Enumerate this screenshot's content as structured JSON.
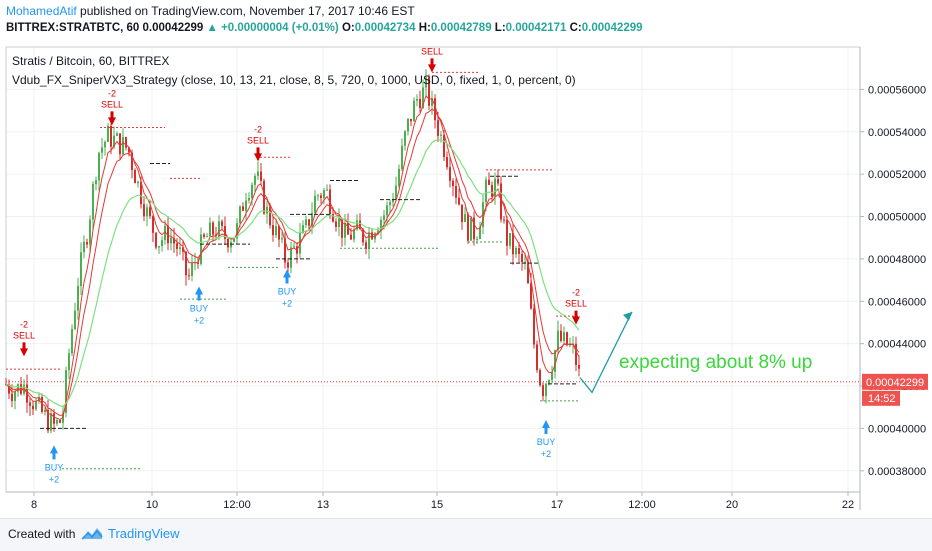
{
  "header": {
    "author": "MohamedAtif",
    "published": " published on TradingView.com, November 17, 2017 10:46 EST",
    "symbol": "BITTREX:STRATBTC, 60",
    "last": "0.00042299",
    "change": "▲ +0.00000004 (+0.01%)",
    "o_label": "O:",
    "o_val": "0.00042734",
    "h_label": "H:",
    "h_val": "0.00042789",
    "l_label": "L:",
    "l_val": "0.00042171",
    "c_label": "C:",
    "c_val": "0.00042299"
  },
  "legend": {
    "line1": "Stratis / Bitcoin, 60, BITTREX",
    "line2": "Vdub_FX_SniperVX3_Strategy (close, 10, 13, 21, close, 8, 5, 720, 0, 1000, USD, 0, fixed, 1, 0, percent, 0)"
  },
  "annotation": "expecting about 8% up",
  "footer": {
    "created": "Created with",
    "brand": "TradingView"
  },
  "colors": {
    "up": "#26a69a",
    "down": "#ef5350",
    "bull_candle": "#4caf50",
    "bear_candle": "#d32f2f",
    "fast_ma": "#e53935",
    "slow_ma": "#7fe07f",
    "buy": "#2196f3",
    "sell": "#d50000",
    "annotation": "#3ad63a",
    "arrow": "#1e9ea3"
  },
  "chart_data": {
    "type": "candlestick",
    "title": "Stratis / Bitcoin, 60, BITTREX",
    "ylim": [
      0.00037,
      0.00058
    ],
    "y_ticks": [
      "0.00038000",
      "0.00040000",
      "0.00042000",
      "0.00044000",
      "0.00046000",
      "0.00048000",
      "0.00050000",
      "0.00052000",
      "0.00054000",
      "0.00056000"
    ],
    "x_ticks": [
      "8",
      "10",
      "12:00",
      "13",
      "15",
      "17",
      "12:00",
      "20",
      "22"
    ],
    "last_price_label": "0.00042299",
    "countdown": "14:52",
    "price_path": [
      [
        0,
        0.000424
      ],
      [
        12,
        0.000418
      ],
      [
        24,
        0.00042
      ],
      [
        34,
        0.000412
      ],
      [
        44,
        0.000406
      ],
      [
        54,
        0.000401
      ],
      [
        62,
        0.000404
      ],
      [
        70,
        0.00044
      ],
      [
        78,
        0.00047
      ],
      [
        88,
        0.000495
      ],
      [
        98,
        0.00053
      ],
      [
        108,
        0.000538
      ],
      [
        118,
        0.000535
      ],
      [
        128,
        0.000532
      ],
      [
        138,
        0.000515
      ],
      [
        148,
        0.0005
      ],
      [
        158,
        0.000488
      ],
      [
        168,
        0.000492
      ],
      [
        178,
        0.000485
      ],
      [
        188,
        0.00047
      ],
      [
        198,
        0.000483
      ],
      [
        206,
        0.00049
      ],
      [
        216,
        0.000494
      ],
      [
        226,
        0.00049
      ],
      [
        236,
        0.000492
      ],
      [
        246,
        0.000512
      ],
      [
        256,
        0.00052
      ],
      [
        266,
        0.000503
      ],
      [
        276,
        0.000492
      ],
      [
        286,
        0.000479
      ],
      [
        296,
        0.000486
      ],
      [
        306,
        0.000494
      ],
      [
        316,
        0.00051
      ],
      [
        326,
        0.000512
      ],
      [
        336,
        0.0005
      ],
      [
        346,
        0.00049
      ],
      [
        356,
        0.000493
      ],
      [
        366,
        0.00049
      ],
      [
        376,
        0.000497
      ],
      [
        386,
        0.000502
      ],
      [
        396,
        0.000515
      ],
      [
        406,
        0.00054
      ],
      [
        416,
        0.000555
      ],
      [
        426,
        0.00056
      ],
      [
        436,
        0.000545
      ],
      [
        446,
        0.00053
      ],
      [
        456,
        0.000512
      ],
      [
        466,
        0.000495
      ],
      [
        476,
        0.000492
      ],
      [
        486,
        0.000512
      ],
      [
        496,
        0.000515
      ],
      [
        506,
        0.00049
      ],
      [
        516,
        0.000482
      ],
      [
        526,
        0.000475
      ],
      [
        534,
        0.00044
      ],
      [
        542,
        0.000418
      ],
      [
        550,
        0.000428
      ],
      [
        558,
        0.000442
      ],
      [
        566,
        0.00044
      ],
      [
        574,
        0.000436
      ],
      [
        580,
        0.000423
      ]
    ],
    "signals": [
      {
        "type": "sell",
        "label": "SELL",
        "count": "-2",
        "x": 24,
        "price": 0.000434
      },
      {
        "type": "buy",
        "label": "BUY",
        "count": "+2",
        "x": 54,
        "price": 0.000392
      },
      {
        "type": "sell",
        "label": "SELL",
        "count": "-2",
        "x": 112,
        "price": 0.000543
      },
      {
        "type": "buy",
        "label": "BUY",
        "count": "+2",
        "x": 199,
        "price": 0.000467
      },
      {
        "type": "sell",
        "label": "SELL",
        "count": "-2",
        "x": 258,
        "price": 0.000526
      },
      {
        "type": "buy",
        "label": "BUY",
        "count": "+2",
        "x": 287,
        "price": 0.000475
      },
      {
        "type": "sell",
        "label": "SELL",
        "count": "",
        "x": 432,
        "price": 0.000568
      },
      {
        "type": "buy",
        "label": "BUY",
        "count": "+2",
        "x": 546,
        "price": 0.000404
      },
      {
        "type": "sell",
        "label": "SELL",
        "count": "-2",
        "x": 576,
        "price": 0.000449
      }
    ],
    "forecast_path": [
      [
        580,
        0.000424
      ],
      [
        592,
        0.000417
      ],
      [
        632,
        0.000455
      ]
    ]
  }
}
